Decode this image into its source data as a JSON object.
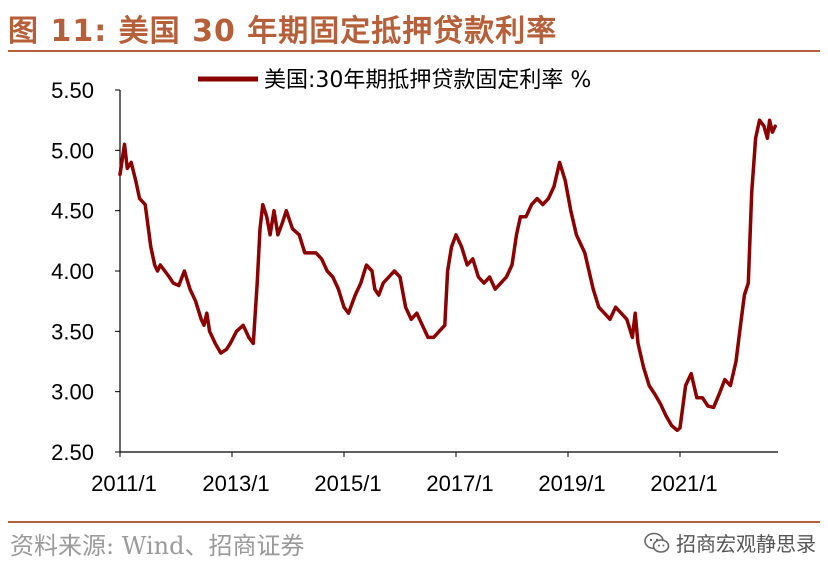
{
  "figure": {
    "title": "图 11:  美国 30 年期固定抵押贷款利率",
    "source": "资料来源:  Wind、招商证券",
    "watermark": "招商宏观静思录",
    "watermark_icon": "wechat-icon",
    "accent_color": "#b5603a"
  },
  "chart_data": {
    "type": "line",
    "title": "",
    "xlabel": "",
    "ylabel": "",
    "ylim": [
      2.5,
      5.5
    ],
    "yticks": [
      "5.50",
      "5.00",
      "4.50",
      "4.00",
      "3.50",
      "3.00",
      "2.50"
    ],
    "xticks": [
      "2011/1",
      "2013/1",
      "2015/1",
      "2017/1",
      "2019/1",
      "2021/1"
    ],
    "xlim": [
      2011.0,
      2022.75
    ],
    "grid": false,
    "legend": "top",
    "series": [
      {
        "name": "美国:30年期抵押贷款固定利率 %",
        "color": "#8b0000",
        "x": [
          2011.0,
          2011.08,
          2011.13,
          2011.2,
          2011.28,
          2011.35,
          2011.45,
          2011.55,
          2011.62,
          2011.67,
          2011.72,
          2011.8,
          2011.88,
          2011.95,
          2012.05,
          2012.15,
          2012.25,
          2012.35,
          2012.45,
          2012.5,
          2012.55,
          2012.6,
          2012.7,
          2012.8,
          2012.9,
          2012.97,
          2013.08,
          2013.2,
          2013.3,
          2013.38,
          2013.45,
          2013.5,
          2013.55,
          2013.62,
          2013.68,
          2013.75,
          2013.82,
          2013.9,
          2013.97,
          2014.08,
          2014.2,
          2014.3,
          2014.4,
          2014.5,
          2014.6,
          2014.7,
          2014.8,
          2014.9,
          2015.0,
          2015.08,
          2015.2,
          2015.3,
          2015.4,
          2015.5,
          2015.55,
          2015.62,
          2015.7,
          2015.8,
          2015.9,
          2016.0,
          2016.1,
          2016.2,
          2016.3,
          2016.4,
          2016.5,
          2016.6,
          2016.7,
          2016.8,
          2016.85,
          2016.92,
          2017.0,
          2017.1,
          2017.2,
          2017.3,
          2017.4,
          2017.5,
          2017.6,
          2017.7,
          2017.8,
          2017.9,
          2018.0,
          2018.08,
          2018.15,
          2018.25,
          2018.35,
          2018.45,
          2018.55,
          2018.65,
          2018.75,
          2018.85,
          2018.95,
          2019.05,
          2019.15,
          2019.3,
          2019.45,
          2019.55,
          2019.65,
          2019.75,
          2019.85,
          2019.95,
          2020.05,
          2020.15,
          2020.2,
          2020.25,
          2020.35,
          2020.45,
          2020.55,
          2020.65,
          2020.75,
          2020.85,
          2020.95,
          2021.0,
          2021.1,
          2021.2,
          2021.3,
          2021.4,
          2021.5,
          2021.6,
          2021.7,
          2021.8,
          2021.9,
          2022.0,
          2022.08,
          2022.15,
          2022.22,
          2022.28,
          2022.35,
          2022.42,
          2022.5,
          2022.56,
          2022.6,
          2022.65,
          2022.7
        ],
        "values": [
          4.8,
          5.05,
          4.85,
          4.9,
          4.75,
          4.6,
          4.55,
          4.2,
          4.05,
          4.0,
          4.05,
          4.0,
          3.95,
          3.9,
          3.88,
          4.0,
          3.85,
          3.75,
          3.6,
          3.55,
          3.65,
          3.5,
          3.4,
          3.32,
          3.35,
          3.4,
          3.5,
          3.55,
          3.45,
          3.4,
          3.9,
          4.35,
          4.55,
          4.45,
          4.3,
          4.5,
          4.3,
          4.4,
          4.5,
          4.35,
          4.3,
          4.15,
          4.15,
          4.15,
          4.1,
          4.0,
          3.95,
          3.85,
          3.7,
          3.65,
          3.8,
          3.9,
          4.05,
          4.0,
          3.85,
          3.8,
          3.9,
          3.95,
          4.0,
          3.95,
          3.7,
          3.6,
          3.65,
          3.55,
          3.45,
          3.45,
          3.5,
          3.55,
          4.0,
          4.2,
          4.3,
          4.2,
          4.05,
          4.1,
          3.95,
          3.9,
          3.95,
          3.85,
          3.9,
          3.95,
          4.05,
          4.3,
          4.45,
          4.45,
          4.55,
          4.6,
          4.55,
          4.6,
          4.7,
          4.9,
          4.75,
          4.5,
          4.3,
          4.15,
          3.85,
          3.7,
          3.65,
          3.6,
          3.7,
          3.65,
          3.6,
          3.45,
          3.65,
          3.4,
          3.2,
          3.05,
          2.98,
          2.9,
          2.8,
          2.72,
          2.68,
          2.7,
          3.05,
          3.15,
          2.95,
          2.95,
          2.88,
          2.87,
          2.98,
          3.1,
          3.05,
          3.25,
          3.55,
          3.8,
          3.9,
          4.65,
          5.1,
          5.25,
          5.2,
          5.1,
          5.25,
          5.15,
          5.2
        ]
      }
    ]
  }
}
